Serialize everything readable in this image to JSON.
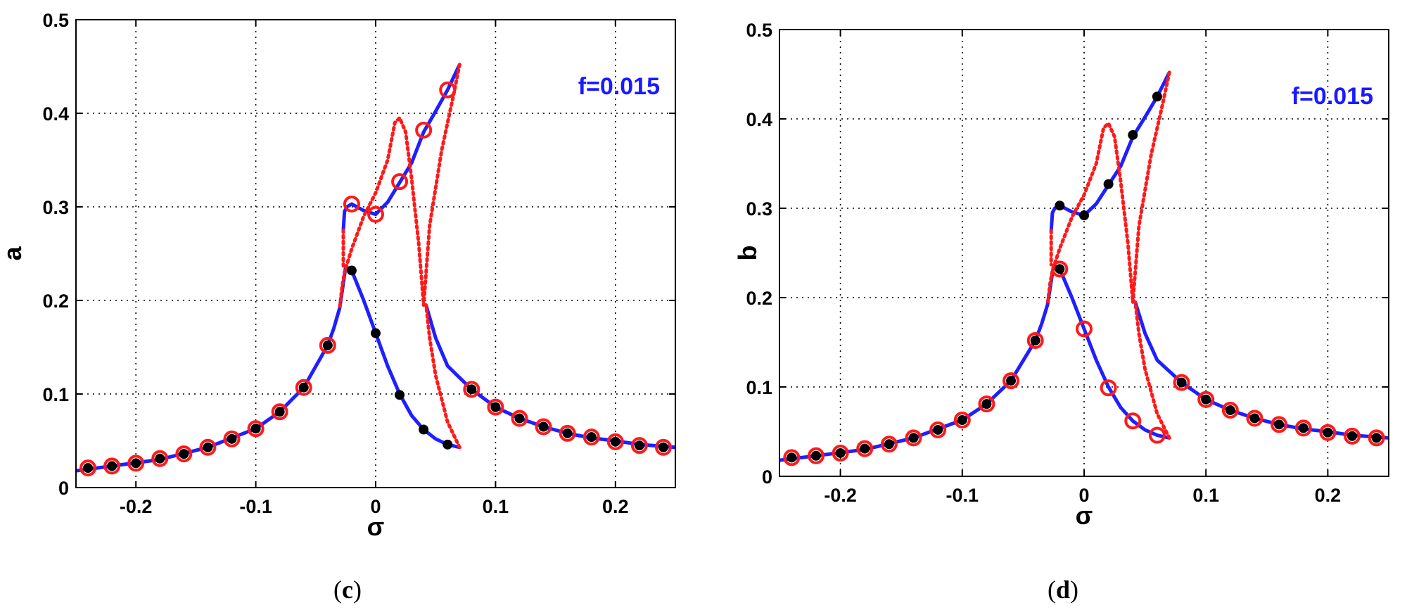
{
  "chart_data": [
    {
      "type": "line",
      "panel_label": "c",
      "xlabel": "σ",
      "ylabel": "a",
      "xlim": [
        -0.25,
        0.25
      ],
      "ylim": [
        0,
        0.5
      ],
      "xticks": [
        -0.2,
        -0.1,
        0,
        0.1,
        0.2
      ],
      "xtick_labels": [
        "-0.2",
        "-0.1",
        "0",
        "0.1",
        "0.2"
      ],
      "yticks": [
        0,
        0.1,
        0.2,
        0.3,
        0.4,
        0.5
      ],
      "ytick_labels": [
        "0",
        "0.1",
        "0.2",
        "0.3",
        "0.4",
        "0.5"
      ],
      "grid": true,
      "annotation": "f=0.015",
      "annotation_color": "#1a1aff",
      "series": [
        {
          "name": "stable-branch-low",
          "style": "solid",
          "color": "#1f1fff",
          "x": [
            -0.25,
            -0.22,
            -0.18,
            -0.14,
            -0.1,
            -0.08,
            -0.06,
            -0.04,
            -0.035,
            -0.03,
            -0.025,
            -0.02,
            -0.01,
            0,
            0.01,
            0.02,
            0.03,
            0.04,
            0.05,
            0.06,
            0.07
          ],
          "y": [
            0.018,
            0.023,
            0.03,
            0.043,
            0.063,
            0.081,
            0.107,
            0.152,
            0.17,
            0.192,
            0.236,
            0.232,
            0.2,
            0.165,
            0.13,
            0.1,
            0.077,
            0.062,
            0.052,
            0.046,
            0.043
          ]
        },
        {
          "name": "stable-branch-upper",
          "style": "solid",
          "color": "#1f1fff",
          "x": [
            -0.027,
            -0.026,
            -0.024,
            -0.02,
            -0.01,
            0,
            0.01,
            0.02,
            0.03,
            0.04,
            0.05,
            0.06,
            0.07
          ],
          "y": [
            0.275,
            0.295,
            0.3,
            0.303,
            0.296,
            0.292,
            0.305,
            0.326,
            0.347,
            0.38,
            0.402,
            0.425,
            0.452
          ]
        },
        {
          "name": "stable-branch-right",
          "style": "solid",
          "color": "#1f1fff",
          "x": [
            0.042,
            0.05,
            0.06,
            0.08,
            0.1,
            0.12,
            0.14,
            0.16,
            0.18,
            0.2,
            0.22,
            0.25
          ],
          "y": [
            0.195,
            0.16,
            0.13,
            0.105,
            0.086,
            0.074,
            0.065,
            0.058,
            0.053,
            0.05,
            0.046,
            0.043
          ]
        },
        {
          "name": "unstable-branch",
          "style": "dotted",
          "color": "#ff1a1a",
          "x": [
            0.07,
            0.065,
            0.055,
            0.045,
            0.04,
            0.036,
            0.03,
            0.025,
            0.02,
            0.016,
            0.01,
            0,
            -0.01,
            -0.02,
            -0.026,
            -0.028,
            -0.03
          ],
          "y": [
            0.452,
            0.42,
            0.36,
            0.28,
            0.195,
            0.26,
            0.33,
            0.38,
            0.395,
            0.39,
            0.35,
            0.315,
            0.29,
            0.255,
            0.23,
            0.215,
            0.192
          ]
        },
        {
          "name": "unstable-branch-low",
          "style": "dotted",
          "color": "#ff1a1a",
          "x": [
            0.07,
            0.06,
            0.05,
            0.045,
            0.042
          ],
          "y": [
            0.043,
            0.07,
            0.12,
            0.16,
            0.195
          ]
        },
        {
          "name": "unstable-short",
          "style": "dotted",
          "color": "#ff1a1a",
          "x": [
            -0.027,
            -0.027
          ],
          "y": [
            0.275,
            0.237
          ]
        }
      ],
      "markers": [
        {
          "x": -0.24,
          "y": 0.021,
          "ring": true,
          "dot": true
        },
        {
          "x": -0.22,
          "y": 0.023,
          "ring": true,
          "dot": true
        },
        {
          "x": -0.2,
          "y": 0.026,
          "ring": true,
          "dot": true
        },
        {
          "x": -0.18,
          "y": 0.031,
          "ring": true,
          "dot": true
        },
        {
          "x": -0.16,
          "y": 0.036,
          "ring": true,
          "dot": true
        },
        {
          "x": -0.14,
          "y": 0.043,
          "ring": true,
          "dot": true
        },
        {
          "x": -0.12,
          "y": 0.052,
          "ring": true,
          "dot": true
        },
        {
          "x": -0.1,
          "y": 0.063,
          "ring": true,
          "dot": true
        },
        {
          "x": -0.08,
          "y": 0.081,
          "ring": true,
          "dot": true
        },
        {
          "x": -0.06,
          "y": 0.107,
          "ring": true,
          "dot": true
        },
        {
          "x": -0.04,
          "y": 0.152,
          "ring": true,
          "dot": true
        },
        {
          "x": -0.02,
          "y": 0.232,
          "ring": false,
          "dot": true
        },
        {
          "x": 0,
          "y": 0.165,
          "ring": false,
          "dot": true
        },
        {
          "x": 0.02,
          "y": 0.099,
          "ring": false,
          "dot": true
        },
        {
          "x": 0.04,
          "y": 0.062,
          "ring": false,
          "dot": true
        },
        {
          "x": 0.06,
          "y": 0.046,
          "ring": false,
          "dot": true
        },
        {
          "x": -0.02,
          "y": 0.303,
          "ring": true,
          "dot": false
        },
        {
          "x": 0,
          "y": 0.292,
          "ring": true,
          "dot": false
        },
        {
          "x": 0.02,
          "y": 0.327,
          "ring": true,
          "dot": false
        },
        {
          "x": 0.04,
          "y": 0.382,
          "ring": true,
          "dot": false
        },
        {
          "x": 0.06,
          "y": 0.425,
          "ring": true,
          "dot": false
        },
        {
          "x": 0.08,
          "y": 0.105,
          "ring": true,
          "dot": true
        },
        {
          "x": 0.1,
          "y": 0.086,
          "ring": true,
          "dot": true
        },
        {
          "x": 0.12,
          "y": 0.074,
          "ring": true,
          "dot": true
        },
        {
          "x": 0.14,
          "y": 0.065,
          "ring": true,
          "dot": true
        },
        {
          "x": 0.16,
          "y": 0.058,
          "ring": true,
          "dot": true
        },
        {
          "x": 0.18,
          "y": 0.054,
          "ring": true,
          "dot": true
        },
        {
          "x": 0.2,
          "y": 0.049,
          "ring": true,
          "dot": true
        },
        {
          "x": 0.22,
          "y": 0.045,
          "ring": true,
          "dot": true
        },
        {
          "x": 0.24,
          "y": 0.043,
          "ring": true,
          "dot": true
        }
      ]
    },
    {
      "type": "line",
      "panel_label": "d",
      "xlabel": "σ",
      "ylabel": "b",
      "xlim": [
        -0.25,
        0.25
      ],
      "ylim": [
        0,
        0.5
      ],
      "xticks": [
        -0.2,
        -0.1,
        0,
        0.1,
        0.2
      ],
      "xtick_labels": [
        "-0.2",
        "-0.1",
        "0",
        "0.1",
        "0.2"
      ],
      "yticks": [
        0,
        0.1,
        0.2,
        0.3,
        0.4,
        0.5
      ],
      "ytick_labels": [
        "0",
        "0.1",
        "0.2",
        "0.3",
        "0.4",
        "0.5"
      ],
      "grid": true,
      "annotation": "f=0.015",
      "annotation_color": "#1a1aff",
      "series": [
        {
          "name": "stable-branch-low",
          "style": "solid",
          "color": "#1f1fff",
          "x": [
            -0.25,
            -0.22,
            -0.18,
            -0.14,
            -0.1,
            -0.08,
            -0.06,
            -0.04,
            -0.035,
            -0.03,
            -0.025,
            -0.02,
            -0.01,
            0,
            0.01,
            0.02,
            0.03,
            0.04,
            0.05,
            0.06,
            0.07
          ],
          "y": [
            0.018,
            0.023,
            0.03,
            0.043,
            0.063,
            0.081,
            0.107,
            0.152,
            0.17,
            0.192,
            0.236,
            0.232,
            0.2,
            0.165,
            0.13,
            0.1,
            0.077,
            0.062,
            0.052,
            0.046,
            0.043
          ]
        },
        {
          "name": "stable-branch-upper",
          "style": "solid",
          "color": "#1f1fff",
          "x": [
            -0.027,
            -0.026,
            -0.024,
            -0.02,
            -0.01,
            0,
            0.01,
            0.02,
            0.03,
            0.04,
            0.05,
            0.06,
            0.07
          ],
          "y": [
            0.275,
            0.295,
            0.3,
            0.303,
            0.296,
            0.292,
            0.305,
            0.326,
            0.347,
            0.38,
            0.402,
            0.425,
            0.452
          ]
        },
        {
          "name": "stable-branch-right",
          "style": "solid",
          "color": "#1f1fff",
          "x": [
            0.042,
            0.05,
            0.06,
            0.08,
            0.1,
            0.12,
            0.14,
            0.16,
            0.18,
            0.2,
            0.22,
            0.25
          ],
          "y": [
            0.195,
            0.16,
            0.13,
            0.105,
            0.086,
            0.074,
            0.065,
            0.058,
            0.053,
            0.05,
            0.046,
            0.043
          ]
        },
        {
          "name": "unstable-branch",
          "style": "dotted",
          "color": "#ff1a1a",
          "x": [
            0.07,
            0.065,
            0.055,
            0.045,
            0.04,
            0.036,
            0.03,
            0.025,
            0.02,
            0.016,
            0.01,
            0,
            -0.01,
            -0.02,
            -0.026,
            -0.028,
            -0.03
          ],
          "y": [
            0.452,
            0.42,
            0.36,
            0.28,
            0.195,
            0.26,
            0.33,
            0.38,
            0.395,
            0.39,
            0.35,
            0.315,
            0.29,
            0.255,
            0.23,
            0.215,
            0.192
          ]
        },
        {
          "name": "unstable-branch-low",
          "style": "dotted",
          "color": "#ff1a1a",
          "x": [
            0.07,
            0.06,
            0.05,
            0.045,
            0.042
          ],
          "y": [
            0.043,
            0.07,
            0.12,
            0.16,
            0.195
          ]
        },
        {
          "name": "unstable-short",
          "style": "dotted",
          "color": "#ff1a1a",
          "x": [
            -0.027,
            -0.027
          ],
          "y": [
            0.275,
            0.237
          ]
        }
      ],
      "markers": [
        {
          "x": -0.24,
          "y": 0.021,
          "ring": true,
          "dot": true
        },
        {
          "x": -0.22,
          "y": 0.023,
          "ring": true,
          "dot": true
        },
        {
          "x": -0.2,
          "y": 0.026,
          "ring": true,
          "dot": true
        },
        {
          "x": -0.18,
          "y": 0.031,
          "ring": true,
          "dot": true
        },
        {
          "x": -0.16,
          "y": 0.036,
          "ring": true,
          "dot": true
        },
        {
          "x": -0.14,
          "y": 0.043,
          "ring": true,
          "dot": true
        },
        {
          "x": -0.12,
          "y": 0.052,
          "ring": true,
          "dot": true
        },
        {
          "x": -0.1,
          "y": 0.063,
          "ring": true,
          "dot": true
        },
        {
          "x": -0.08,
          "y": 0.081,
          "ring": true,
          "dot": true
        },
        {
          "x": -0.06,
          "y": 0.107,
          "ring": true,
          "dot": true
        },
        {
          "x": -0.04,
          "y": 0.152,
          "ring": true,
          "dot": true
        },
        {
          "x": -0.02,
          "y": 0.232,
          "ring": true,
          "dot": true
        },
        {
          "x": 0,
          "y": 0.165,
          "ring": true,
          "dot": false
        },
        {
          "x": 0.02,
          "y": 0.099,
          "ring": true,
          "dot": false
        },
        {
          "x": 0.04,
          "y": 0.062,
          "ring": true,
          "dot": false
        },
        {
          "x": 0.06,
          "y": 0.046,
          "ring": true,
          "dot": false
        },
        {
          "x": -0.02,
          "y": 0.303,
          "ring": false,
          "dot": true
        },
        {
          "x": 0,
          "y": 0.292,
          "ring": false,
          "dot": true
        },
        {
          "x": 0.02,
          "y": 0.327,
          "ring": false,
          "dot": true
        },
        {
          "x": 0.04,
          "y": 0.382,
          "ring": false,
          "dot": true
        },
        {
          "x": 0.06,
          "y": 0.425,
          "ring": false,
          "dot": true
        },
        {
          "x": 0.08,
          "y": 0.105,
          "ring": true,
          "dot": true
        },
        {
          "x": 0.1,
          "y": 0.086,
          "ring": true,
          "dot": true
        },
        {
          "x": 0.12,
          "y": 0.074,
          "ring": true,
          "dot": true
        },
        {
          "x": 0.14,
          "y": 0.065,
          "ring": true,
          "dot": true
        },
        {
          "x": 0.16,
          "y": 0.058,
          "ring": true,
          "dot": true
        },
        {
          "x": 0.18,
          "y": 0.054,
          "ring": true,
          "dot": true
        },
        {
          "x": 0.2,
          "y": 0.049,
          "ring": true,
          "dot": true
        },
        {
          "x": 0.22,
          "y": 0.045,
          "ring": true,
          "dot": true
        },
        {
          "x": 0.24,
          "y": 0.043,
          "ring": true,
          "dot": true
        }
      ]
    }
  ]
}
